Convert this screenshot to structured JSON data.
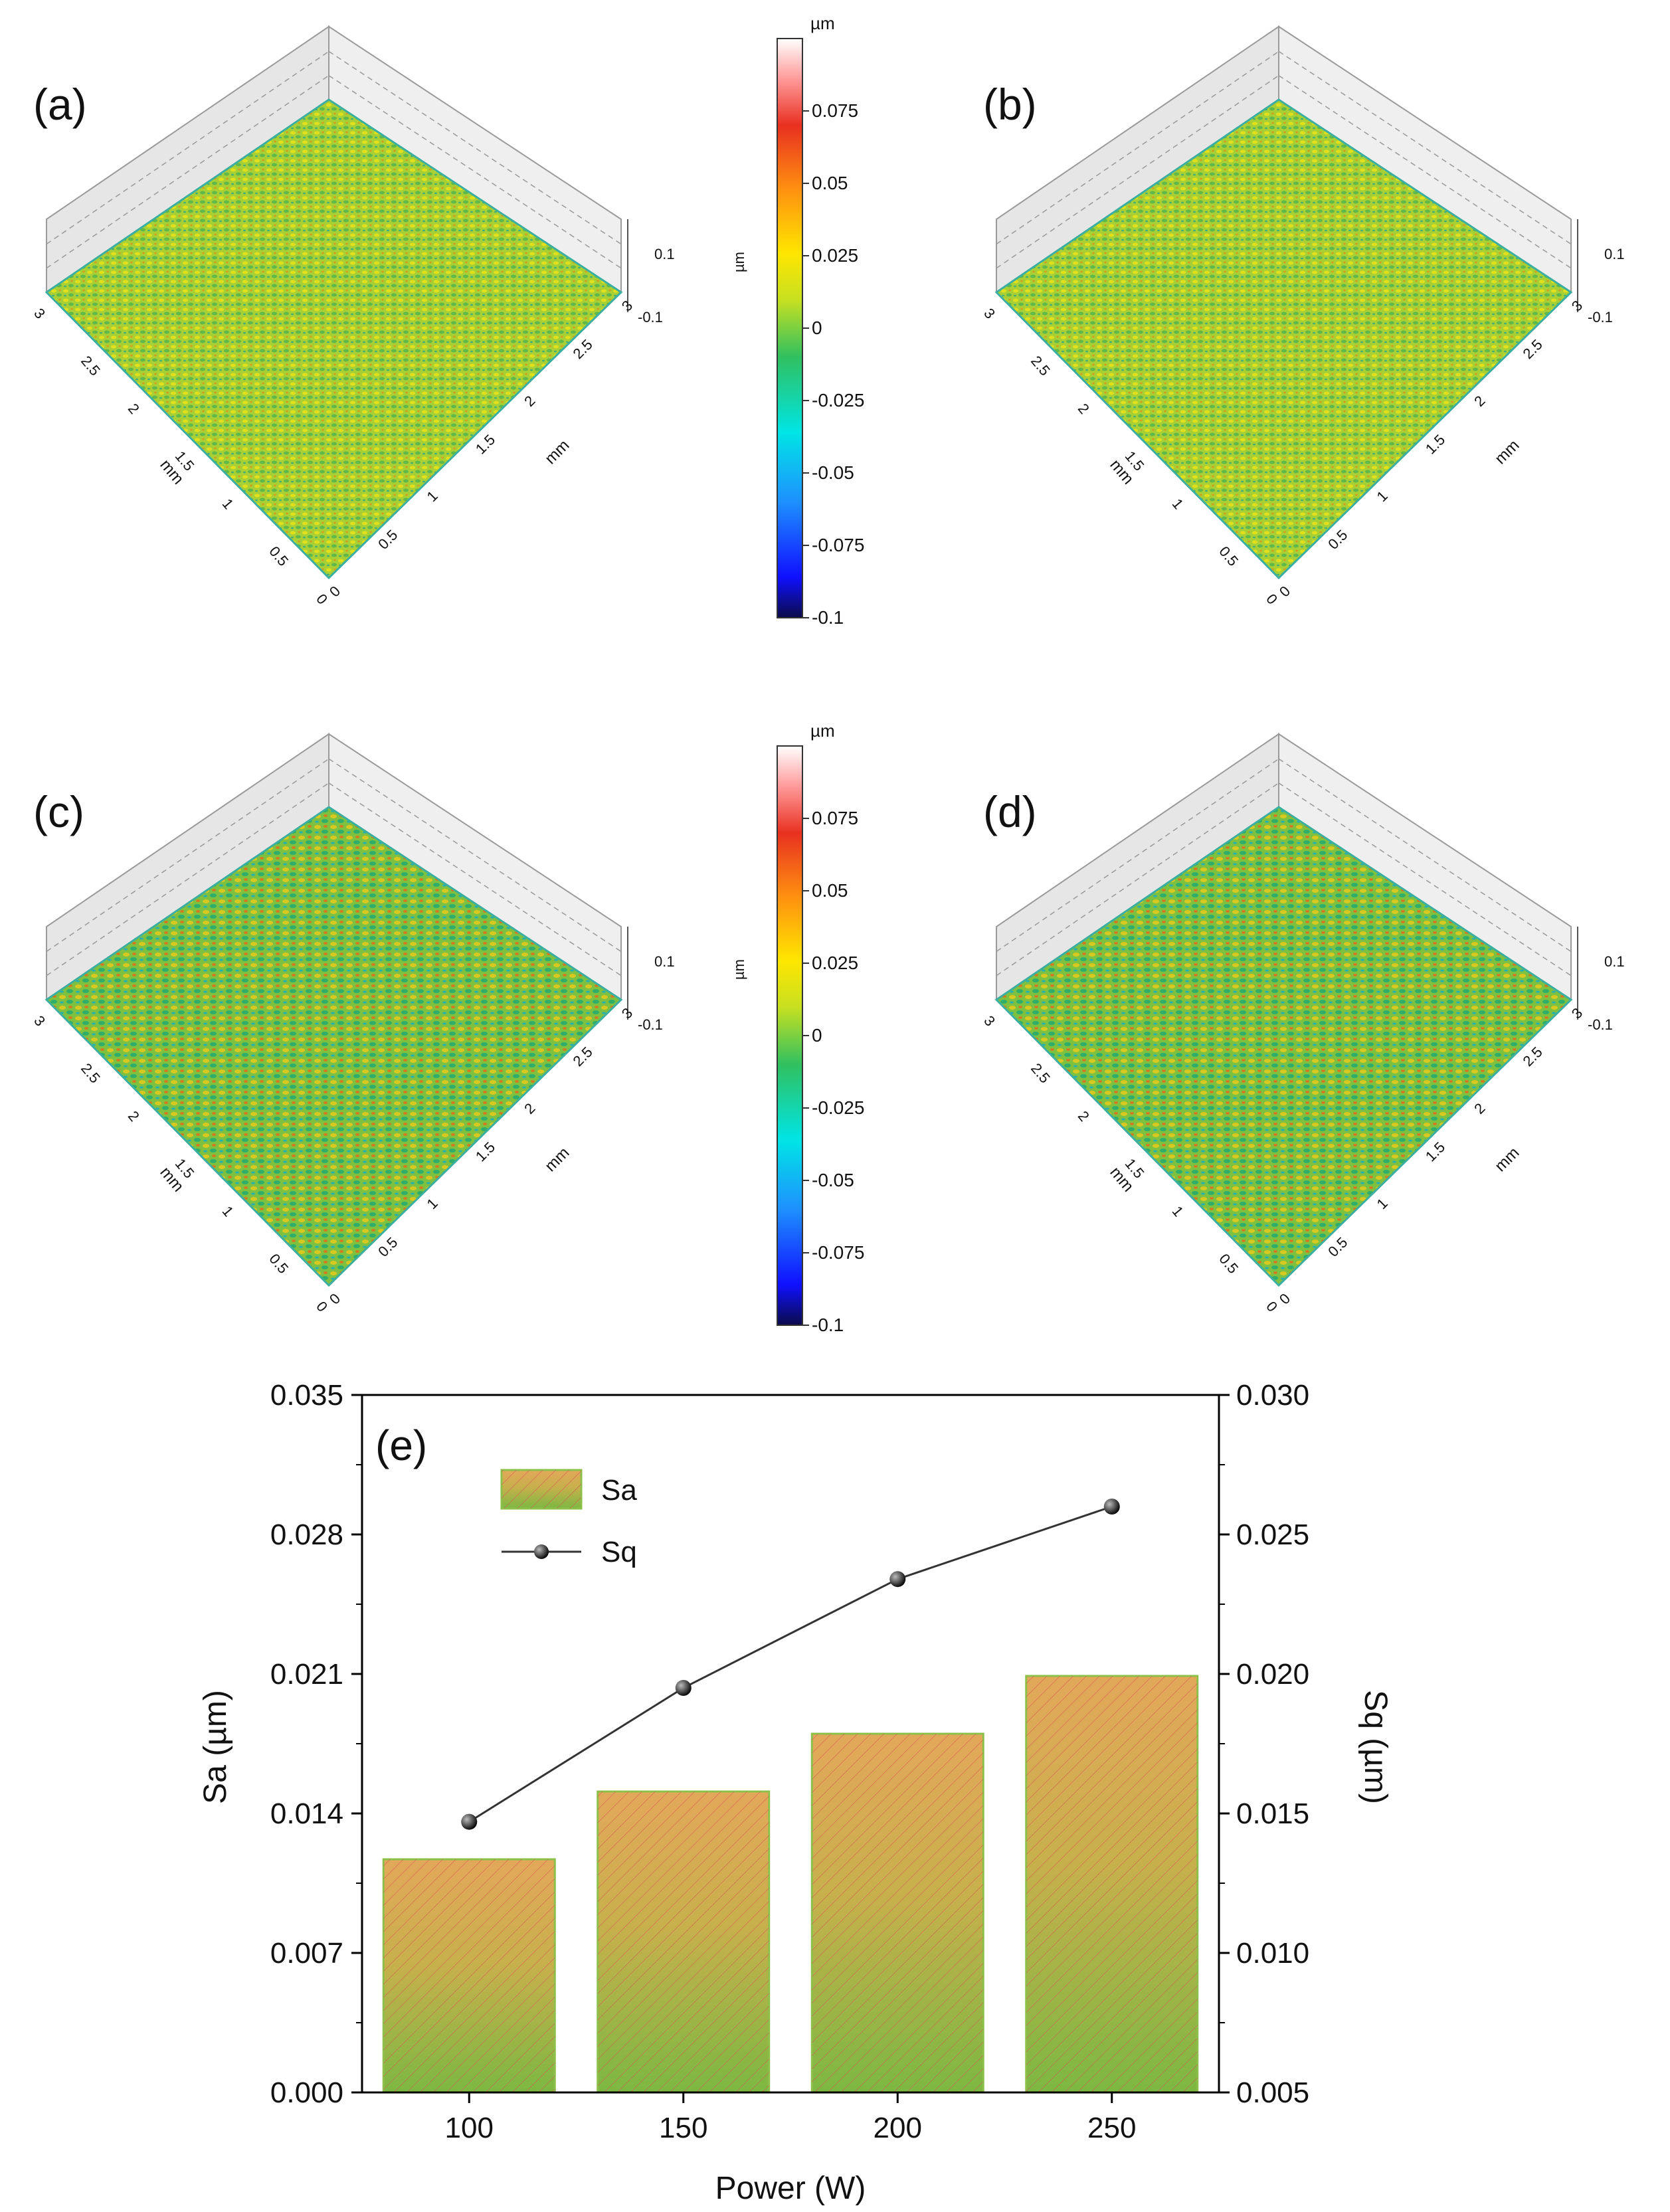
{
  "surface_panels": [
    {
      "label": "(a)",
      "tick_labels": [
        "3",
        "2.5",
        "2",
        "1.5",
        "1",
        "0.5",
        "0",
        "3",
        "2.5",
        "2",
        "1.5",
        "1",
        "0.5",
        "0"
      ],
      "axis_unit": "mm",
      "z_ticks": [
        "0.1",
        "-0.1"
      ]
    },
    {
      "label": "(b)",
      "tick_labels": [
        "3",
        "2.5",
        "2",
        "1.5",
        "1",
        "0.5",
        "0",
        "3",
        "2.5",
        "2",
        "1.5",
        "1",
        "0.5",
        "0"
      ],
      "axis_unit": "mm",
      "z_ticks": [
        "0.1",
        "-0.1"
      ]
    },
    {
      "label": "(c)",
      "tick_labels": [
        "3",
        "2.5",
        "2",
        "1.5",
        "1",
        "0.5",
        "0",
        "3",
        "2.5",
        "2",
        "1.5",
        "1",
        "0.5",
        "0"
      ],
      "axis_unit": "mm",
      "z_ticks": [
        "0.1",
        "-0.1"
      ]
    },
    {
      "label": "(d)",
      "tick_labels": [
        "3",
        "2.5",
        "2",
        "1.5",
        "1",
        "0.5",
        "0",
        "3",
        "2.5",
        "2",
        "1.5",
        "1",
        "0.5",
        "0"
      ],
      "axis_unit": "mm",
      "z_ticks": [
        "0.1",
        "-0.1"
      ]
    }
  ],
  "colorbars": [
    {
      "unit_top": "µm",
      "side_label": "µm",
      "ticks": [
        "0.075",
        "0.05",
        "0.025",
        "0",
        "-0.025",
        "-0.05",
        "-0.075",
        "-0.1"
      ]
    },
    {
      "unit_top": "µm",
      "side_label": "µm",
      "ticks": [
        "0.075",
        "0.05",
        "0.025",
        "0",
        "-0.025",
        "-0.05",
        "-0.075",
        "-0.1"
      ]
    }
  ],
  "colors": {
    "bar_fill_top": "#e3a85a",
    "bar_fill_bottom": "#7cb842",
    "bar_edge": "#8dc04a",
    "hatch": "#d9534f",
    "line": "#333333",
    "marker": "#111111",
    "surface_base": "#9ccb3a"
  },
  "chart_data": {
    "type": "bar+line",
    "panel_label": "(e)",
    "categories": [
      "100",
      "150",
      "200",
      "250"
    ],
    "xlabel": "Power (W)",
    "ylabel_left": "Sa (µm)",
    "ylabel_right": "Sq (µm)",
    "ylim_left": [
      0.0,
      0.035
    ],
    "ylim_right": [
      0.005,
      0.03
    ],
    "yticks_left": [
      "0.000",
      "0.007",
      "0.014",
      "0.021",
      "0.028",
      "0.035"
    ],
    "yticks_right": [
      "0.005",
      "0.010",
      "0.015",
      "0.020",
      "0.025",
      "0.030"
    ],
    "legend": [
      "Sa",
      "Sq"
    ],
    "legend_position": "top-left",
    "series": [
      {
        "name": "Sa",
        "type": "bar",
        "axis": "left",
        "values": [
          0.0117,
          0.0151,
          0.018,
          0.0209
        ]
      },
      {
        "name": "Sq",
        "type": "line",
        "axis": "right",
        "values": [
          0.0147,
          0.0195,
          0.0234,
          0.026
        ]
      }
    ]
  }
}
